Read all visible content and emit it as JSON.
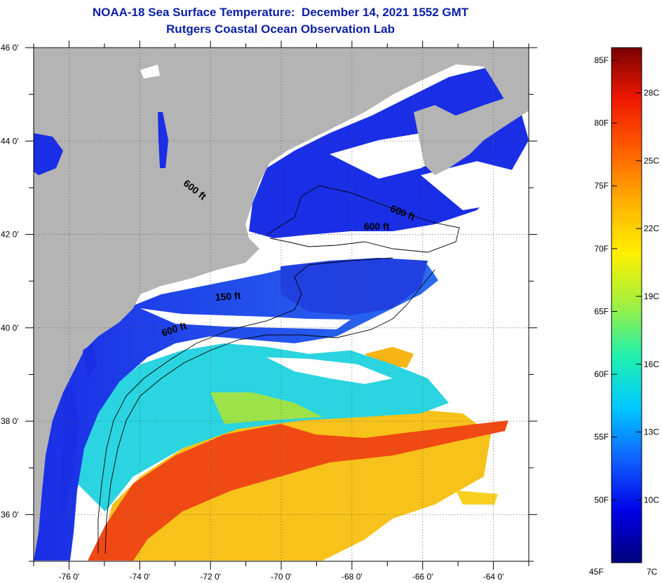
{
  "header": {
    "title": "NOAA-18 Sea Surface Temperature:  December 14, 2021 1552 GMT",
    "subtitle": "Rutgers Coastal Ocean Observation Lab"
  },
  "map": {
    "lon_range": [
      -77,
      -63
    ],
    "lat_range": [
      35,
      46
    ],
    "lon_ticks": [
      {
        "value": -76,
        "label": "-76 0'"
      },
      {
        "value": -74,
        "label": "-74 0'"
      },
      {
        "value": -72,
        "label": "-72 0'"
      },
      {
        "value": -70,
        "label": "-70 0'"
      },
      {
        "value": -68,
        "label": "-68 0'"
      },
      {
        "value": -66,
        "label": "-66 0'"
      },
      {
        "value": -64,
        "label": "-64 0'"
      }
    ],
    "lat_ticks": [
      {
        "value": 46,
        "label": "46 0'"
      },
      {
        "value": 44,
        "label": "44 0'"
      },
      {
        "value": 42,
        "label": "42 0'"
      },
      {
        "value": 40,
        "label": "40 0'"
      },
      {
        "value": 38,
        "label": "38 0'"
      },
      {
        "value": 36,
        "label": "36 0'"
      }
    ],
    "contour_labels": [
      {
        "text": "600 ft",
        "lon": -72.5,
        "lat": 42.9,
        "rotate": 38
      },
      {
        "text": "600 ft",
        "lon": -66.6,
        "lat": 42.4,
        "rotate": 22
      },
      {
        "text": "600 ft",
        "lon": -67.3,
        "lat": 42.1,
        "rotate": 0
      },
      {
        "text": "150 ft",
        "lon": -71.5,
        "lat": 40.6,
        "rotate": -4
      },
      {
        "text": "600 ft",
        "lon": -73.0,
        "lat": 39.9,
        "rotate": -18
      }
    ],
    "colors": {
      "land": "#b4b4b4",
      "cloud": "#ffffff",
      "cold_water": "#1a2ee6",
      "mid_water": "#2ad4e0",
      "warm_water": "#f7c21a",
      "gulf_stream": "#f04a14"
    }
  },
  "colorbar": {
    "range_f": [
      45,
      86
    ],
    "fahrenheit_ticks": [
      {
        "value": 85,
        "label": "85F"
      },
      {
        "value": 80,
        "label": "80F"
      },
      {
        "value": 75,
        "label": "75F"
      },
      {
        "value": 70,
        "label": "70F"
      },
      {
        "value": 65,
        "label": "65F"
      },
      {
        "value": 60,
        "label": "60F"
      },
      {
        "value": 55,
        "label": "55F"
      },
      {
        "value": 50,
        "label": "50F"
      }
    ],
    "celsius_ticks": [
      {
        "value": 28,
        "label": "28C"
      },
      {
        "value": 25,
        "label": "25C"
      },
      {
        "value": 22,
        "label": "22C"
      },
      {
        "value": 19,
        "label": "19C"
      },
      {
        "value": 16,
        "label": "16C"
      },
      {
        "value": 13,
        "label": "13C"
      },
      {
        "value": 10,
        "label": "10C"
      }
    ],
    "bottom_f_label": "45F",
    "bottom_c_label": "7C",
    "stops": [
      "#00007a",
      "#0000e6",
      "#1060ff",
      "#00c8ff",
      "#20f0b0",
      "#a0f040",
      "#fff000",
      "#ffb000",
      "#ff6000",
      "#f01800",
      "#7a0000"
    ]
  }
}
